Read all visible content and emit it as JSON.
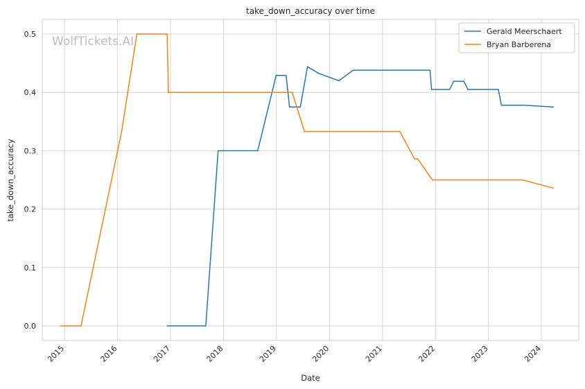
{
  "watermark": "WolfTickets.AI",
  "chart_data": {
    "type": "line",
    "title": "take_down_accuracy over time",
    "xlabel": "Date",
    "ylabel": "take_down_accuracy",
    "xlim": [
      "2014-08-01",
      "2024-09-15"
    ],
    "ylim": [
      -0.025,
      0.525
    ],
    "x_ticks": [
      "2015",
      "2016",
      "2017",
      "2018",
      "2019",
      "2020",
      "2021",
      "2022",
      "2023",
      "2024"
    ],
    "y_ticks": [
      0.0,
      0.1,
      0.2,
      0.3,
      0.4,
      0.5
    ],
    "y_tick_labels": [
      "0.0",
      "0.1",
      "0.2",
      "0.3",
      "0.4",
      "0.5"
    ],
    "grid": true,
    "legend_position": "top-right",
    "series": [
      {
        "name": "Gerald Meerschaert",
        "color": "#1f77b4",
        "points": [
          [
            "2016-12-10",
            0.0
          ],
          [
            "2017-09-01",
            0.0
          ],
          [
            "2017-11-25",
            0.3
          ],
          [
            "2018-08-25",
            0.3
          ],
          [
            "2018-12-30",
            0.429
          ],
          [
            "2019-03-09",
            0.429
          ],
          [
            "2019-04-01",
            0.375
          ],
          [
            "2019-06-15",
            0.375
          ],
          [
            "2019-08-03",
            0.444
          ],
          [
            "2019-10-15",
            0.433
          ],
          [
            "2020-03-07",
            0.42
          ],
          [
            "2020-06-13",
            0.438
          ],
          [
            "2021-11-25",
            0.438
          ],
          [
            "2021-12-05",
            0.405
          ],
          [
            "2022-04-09",
            0.405
          ],
          [
            "2022-05-07",
            0.419
          ],
          [
            "2022-07-16",
            0.419
          ],
          [
            "2022-08-13",
            0.405
          ],
          [
            "2023-03-11",
            0.405
          ],
          [
            "2023-04-01",
            0.378
          ],
          [
            "2023-09-01",
            0.378
          ],
          [
            "2024-03-23",
            0.375
          ]
        ]
      },
      {
        "name": "Bryan Barberena",
        "color": "#ff7f0e",
        "points": [
          [
            "2014-12-06",
            0.0
          ],
          [
            "2015-04-25",
            0.0
          ],
          [
            "2016-01-30",
            0.333
          ],
          [
            "2016-05-14",
            0.5
          ],
          [
            "2016-12-09",
            0.5
          ],
          [
            "2016-12-17",
            0.4
          ],
          [
            "2019-04-20",
            0.4
          ],
          [
            "2019-07-13",
            0.333
          ],
          [
            "2021-05-01",
            0.333
          ],
          [
            "2021-08-10",
            0.286
          ],
          [
            "2021-09-01",
            0.286
          ],
          [
            "2021-12-11",
            0.25
          ],
          [
            "2023-08-25",
            0.25
          ],
          [
            "2024-03-23",
            0.236
          ]
        ]
      }
    ]
  }
}
